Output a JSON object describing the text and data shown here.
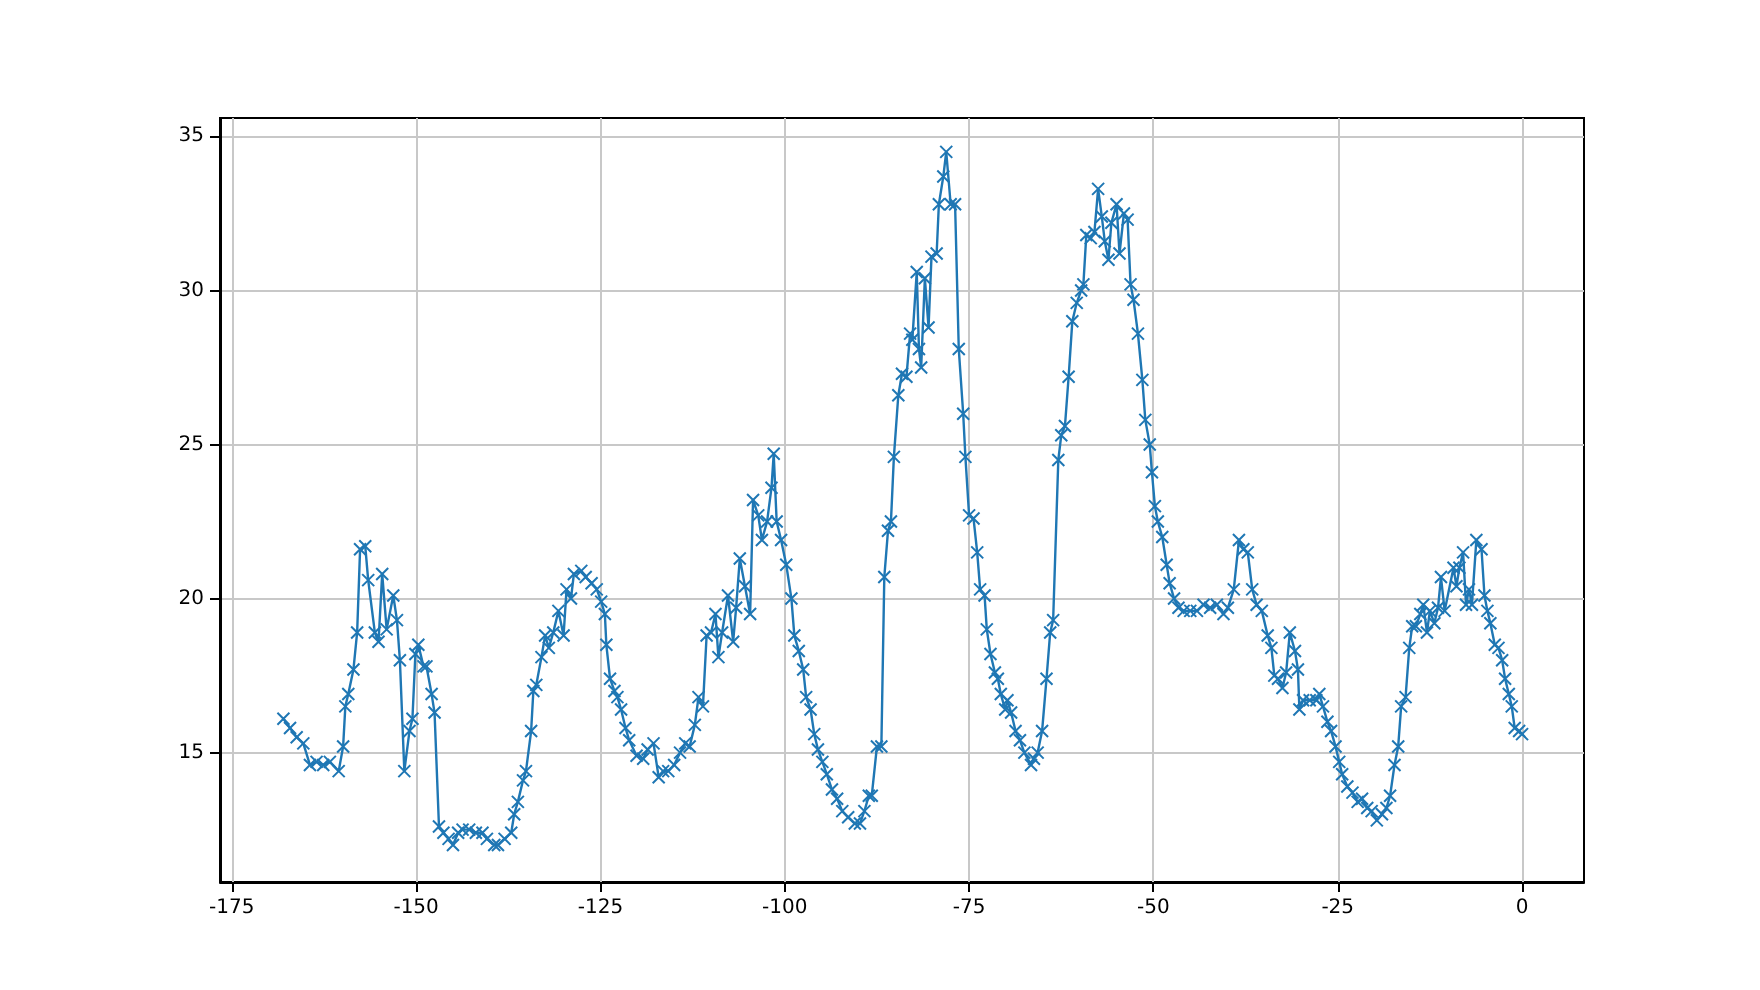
{
  "chart_data": {
    "type": "line",
    "x": [
      -168.0,
      -167.1,
      -166.2,
      -165.3,
      -164.4,
      -163.5,
      -162.6,
      -161.7,
      -160.5,
      -159.9,
      -159.6,
      -159.2,
      -158.5,
      -158.0,
      -157.6,
      -156.9,
      -156.5,
      -155.6,
      -155.1,
      -154.6,
      -154.0,
      -153.1,
      -152.6,
      -152.2,
      -151.6,
      -150.9,
      -150.5,
      -150.1,
      -149.7,
      -149.0,
      -148.6,
      -147.9,
      -147.5,
      -146.9,
      -146.3,
      -145.6,
      -145.0,
      -144.3,
      -143.7,
      -142.8,
      -141.9,
      -141.0,
      -140.4,
      -139.4,
      -138.9,
      -138.0,
      -137.1,
      -136.7,
      -136.2,
      -135.5,
      -135.1,
      -134.4,
      -134.1,
      -133.7,
      -133.0,
      -132.5,
      -132.0,
      -131.4,
      -130.7,
      -130.0,
      -129.6,
      -129.0,
      -128.6,
      -127.6,
      -127.0,
      -126.2,
      -125.5,
      -124.9,
      -124.4,
      -124.2,
      -123.7,
      -123.1,
      -122.7,
      -122.2,
      -121.6,
      -121.1,
      -120.1,
      -119.2,
      -118.6,
      -117.8,
      -117.1,
      -116.5,
      -115.8,
      -115.0,
      -114.2,
      -113.5,
      -112.9,
      -112.2,
      -111.7,
      -111.1,
      -110.6,
      -110.0,
      -109.4,
      -109.0,
      -108.5,
      -107.7,
      -107.0,
      -106.6,
      -106.1,
      -105.4,
      -104.7,
      -104.3,
      -103.6,
      -103.1,
      -102.4,
      -101.8,
      -101.5,
      -101.1,
      -100.5,
      -99.8,
      -99.1,
      -98.7,
      -98.1,
      -97.5,
      -97.1,
      -96.5,
      -96.0,
      -95.5,
      -94.9,
      -94.3,
      -93.6,
      -92.9,
      -92.2,
      -91.4,
      -90.5,
      -89.8,
      -89.2,
      -88.6,
      -88.2,
      -87.5,
      -86.9,
      -86.5,
      -86.0,
      -85.6,
      -85.2,
      -84.6,
      -84.1,
      -83.5,
      -83.0,
      -82.7,
      -82.1,
      -81.8,
      -81.5,
      -81.0,
      -80.5,
      -80.1,
      -79.4,
      -79.1,
      -78.5,
      -78.1,
      -77.5,
      -76.9,
      -76.4,
      -75.8,
      -75.5,
      -75.0,
      -74.4,
      -73.9,
      -73.5,
      -72.9,
      -72.6,
      -72.1,
      -71.5,
      -71.1,
      -70.7,
      -70.1,
      -69.8,
      -69.3,
      -68.7,
      -68.1,
      -67.5,
      -66.6,
      -66.2,
      -65.7,
      -65.1,
      -64.5,
      -64.0,
      -63.6,
      -62.9,
      -62.5,
      -62.0,
      -61.5,
      -61.0,
      -60.4,
      -59.8,
      -59.5,
      -59.1,
      -58.5,
      -58.0,
      -57.5,
      -57.0,
      -56.6,
      -56.1,
      -55.7,
      -55.0,
      -54.6,
      -54.0,
      -53.5,
      -53.1,
      -52.7,
      -52.1,
      -51.5,
      -51.1,
      -50.5,
      -50.2,
      -49.8,
      -49.4,
      -48.8,
      -48.2,
      -47.8,
      -47.2,
      -46.6,
      -45.9,
      -45.0,
      -44.1,
      -43.2,
      -42.3,
      -41.4,
      -40.5,
      -39.9,
      -39.1,
      -38.4,
      -37.8,
      -37.2,
      -36.6,
      -36.0,
      -35.3,
      -34.5,
      -34.0,
      -33.6,
      -33.1,
      -32.5,
      -32.0,
      -31.5,
      -30.8,
      -30.4,
      -30.2,
      -29.7,
      -28.8,
      -27.9,
      -27.5,
      -27.0,
      -26.4,
      -25.9,
      -25.3,
      -24.8,
      -24.4,
      -23.7,
      -23.0,
      -22.3,
      -21.7,
      -21.0,
      -20.4,
      -19.7,
      -19.0,
      -18.4,
      -17.9,
      -17.3,
      -16.8,
      -16.4,
      -15.8,
      -15.3,
      -14.9,
      -14.4,
      -13.8,
      -13.4,
      -12.9,
      -12.5,
      -11.9,
      -11.4,
      -11.0,
      -10.5,
      -9.3,
      -8.9,
      -8.5,
      -8.0,
      -7.6,
      -7.2,
      -6.8,
      -6.2,
      -5.5,
      -5.1,
      -4.7,
      -4.3,
      -3.7,
      -3.2,
      -2.7,
      -2.3,
      -1.8,
      -1.4,
      -1.0,
      -0.4,
      0.0
    ],
    "series": [
      {
        "color": "#1f77b4",
        "values": [
          16.1,
          15.8,
          15.5,
          15.3,
          14.6,
          14.7,
          14.6,
          14.7,
          14.4,
          15.2,
          16.5,
          16.9,
          17.7,
          18.9,
          21.6,
          21.7,
          20.6,
          18.9,
          18.6,
          20.8,
          19.0,
          20.1,
          19.3,
          18.0,
          14.4,
          15.7,
          16.1,
          18.2,
          18.5,
          17.8,
          17.8,
          16.9,
          16.3,
          12.6,
          12.4,
          12.2,
          12.0,
          12.4,
          12.5,
          12.5,
          12.4,
          12.4,
          12.2,
          12.0,
          12.0,
          12.2,
          12.4,
          13.0,
          13.4,
          14.1,
          14.4,
          15.7,
          17.0,
          17.2,
          18.1,
          18.8,
          18.4,
          18.9,
          19.6,
          18.8,
          20.3,
          20.0,
          20.8,
          20.9,
          20.7,
          20.5,
          20.3,
          19.9,
          19.5,
          18.5,
          17.4,
          17.0,
          16.8,
          16.4,
          15.8,
          15.4,
          14.9,
          14.8,
          15.1,
          15.3,
          14.2,
          14.4,
          14.4,
          14.6,
          15.0,
          15.3,
          15.2,
          15.9,
          16.8,
          16.5,
          18.8,
          18.9,
          19.5,
          18.1,
          18.9,
          20.1,
          18.6,
          19.7,
          21.3,
          20.4,
          19.5,
          23.2,
          22.7,
          21.9,
          22.5,
          23.6,
          24.7,
          22.5,
          21.9,
          21.1,
          20.0,
          18.8,
          18.3,
          17.7,
          16.8,
          16.4,
          15.6,
          15.1,
          14.7,
          14.3,
          13.8,
          13.5,
          13.1,
          12.9,
          12.7,
          12.7,
          13.1,
          13.6,
          13.6,
          15.2,
          15.2,
          20.7,
          22.2,
          22.5,
          24.6,
          26.6,
          27.3,
          27.2,
          28.6,
          28.4,
          30.6,
          28.1,
          27.5,
          30.4,
          28.8,
          31.1,
          31.2,
          32.8,
          33.7,
          34.5,
          32.8,
          32.8,
          28.1,
          26.0,
          24.6,
          22.7,
          22.6,
          21.5,
          20.3,
          20.1,
          19.0,
          18.2,
          17.6,
          17.4,
          16.9,
          16.4,
          16.7,
          16.3,
          15.7,
          15.4,
          15.0,
          14.6,
          14.8,
          15.0,
          15.7,
          17.4,
          18.9,
          19.3,
          24.5,
          25.3,
          25.6,
          27.2,
          29.0,
          29.6,
          30.0,
          30.2,
          31.8,
          31.7,
          31.9,
          33.3,
          32.4,
          31.6,
          31.0,
          32.2,
          32.8,
          31.2,
          32.5,
          32.3,
          30.2,
          29.7,
          28.6,
          27.1,
          25.8,
          25.0,
          24.1,
          23.0,
          22.5,
          22.0,
          21.1,
          20.5,
          20.0,
          19.7,
          19.6,
          19.6,
          19.6,
          19.8,
          19.7,
          19.8,
          19.5,
          19.7,
          20.3,
          21.9,
          21.6,
          21.5,
          20.3,
          19.8,
          19.6,
          18.8,
          18.4,
          17.5,
          17.4,
          17.1,
          17.6,
          18.9,
          18.3,
          17.7,
          16.4,
          16.7,
          16.7,
          16.7,
          16.9,
          16.5,
          16.0,
          15.7,
          15.2,
          14.7,
          14.3,
          13.9,
          13.7,
          13.4,
          13.5,
          13.2,
          13.1,
          12.8,
          13.0,
          13.2,
          13.6,
          14.6,
          15.2,
          16.5,
          16.8,
          18.4,
          19.1,
          19.1,
          19.5,
          19.8,
          18.9,
          19.6,
          19.2,
          19.7,
          20.7,
          19.6,
          21.0,
          20.4,
          21.0,
          21.5,
          19.8,
          20.3,
          19.8,
          21.9,
          21.6,
          20.1,
          19.6,
          19.2,
          18.5,
          18.4,
          18.0,
          17.4,
          16.9,
          16.5,
          15.8,
          15.7,
          15.6
        ]
      }
    ],
    "xlim": [
      -176.6,
      8.4
    ],
    "ylim": [
      10.8,
      35.6
    ],
    "xticks": [
      -175,
      -150,
      -125,
      -100,
      -75,
      -50,
      -25,
      0
    ],
    "yticks": [
      15,
      20,
      25,
      30,
      35
    ],
    "grid": true,
    "marker": "cross",
    "line_style": "solid"
  }
}
